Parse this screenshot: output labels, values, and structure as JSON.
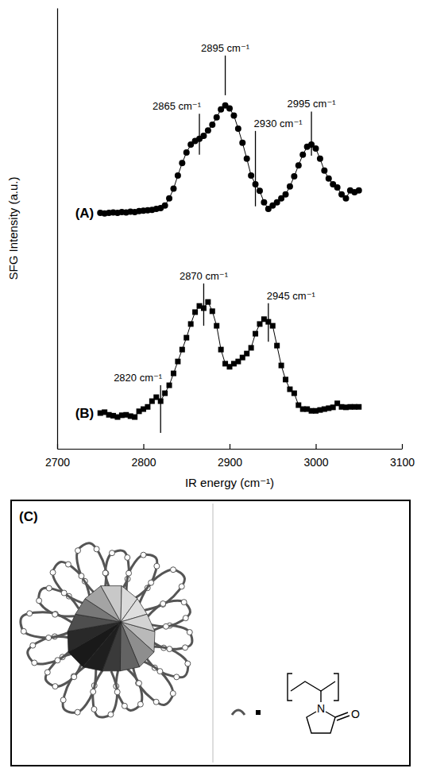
{
  "chart_data": {
    "type": "line",
    "x_label": "IR energy (cm⁻¹)",
    "y_label": "SFG Intensity (a.u.)",
    "xlim": [
      2700,
      3100
    ],
    "xticks": [
      2700,
      2800,
      2900,
      3000,
      3100
    ],
    "ylim": [
      0,
      100
    ],
    "tick_labels": "x",
    "x": [
      2750,
      2755,
      2760,
      2765,
      2770,
      2775,
      2780,
      2785,
      2790,
      2795,
      2800,
      2805,
      2810,
      2815,
      2820,
      2825,
      2830,
      2835,
      2840,
      2845,
      2850,
      2855,
      2860,
      2865,
      2870,
      2875,
      2880,
      2885,
      2890,
      2895,
      2900,
      2905,
      2910,
      2915,
      2920,
      2925,
      2930,
      2935,
      2940,
      2945,
      2950,
      2955,
      2960,
      2965,
      2970,
      2975,
      2980,
      2985,
      2990,
      2995,
      3000,
      3005,
      3010,
      3015,
      3020,
      3025,
      3030,
      3035,
      3040,
      3045,
      3050
    ],
    "series": [
      {
        "name": "(A)",
        "color": "#000000",
        "marker": "circle",
        "line_style": "solid",
        "values": [
          53.5,
          53.4,
          53.5,
          53.6,
          53.5,
          53.7,
          53.6,
          53.8,
          53.7,
          53.9,
          54.0,
          54.1,
          54.2,
          54.4,
          54.6,
          55.2,
          56.8,
          59.0,
          62.0,
          64.8,
          67.2,
          69.0,
          69.8,
          70.3,
          71.0,
          72.2,
          73.5,
          75.2,
          77.0,
          77.9,
          77.2,
          75.6,
          72.6,
          69.4,
          65.8,
          62.0,
          60.0,
          58.5,
          55.9,
          54.4,
          55.2,
          55.9,
          56.8,
          57.7,
          59.5,
          61.8,
          64.3,
          66.7,
          68.5,
          69.0,
          68.1,
          65.8,
          63.1,
          61.3,
          60.0,
          59.3,
          57.7,
          56.8,
          58.6,
          58.2,
          58.6
        ]
      },
      {
        "name": "(B)",
        "color": "#000000",
        "marker": "square",
        "line_style": "solid",
        "values": [
          8.1,
          8.3,
          7.7,
          7.5,
          7.2,
          7.6,
          7.7,
          7.4,
          7.2,
          8.5,
          9.0,
          9.5,
          10.8,
          11.7,
          10.8,
          12.6,
          14.4,
          17.1,
          19.8,
          22.5,
          25.2,
          28.3,
          31.0,
          32.4,
          31.9,
          33.3,
          31.2,
          27.9,
          22.5,
          19.3,
          18.6,
          19.3,
          19.8,
          20.7,
          21.6,
          22.9,
          26.1,
          28.3,
          29.4,
          28.8,
          27.9,
          23.4,
          18.9,
          15.7,
          13.5,
          12.6,
          9.9,
          9.0,
          9.0,
          8.6,
          8.6,
          8.8,
          9.0,
          9.2,
          9.4,
          10.3,
          9.5,
          9.4,
          9.5,
          9.5,
          9.5
        ]
      }
    ],
    "annotations": [
      {
        "label": "2865 cm⁻¹",
        "x": 2865,
        "y_range": [
          66.7,
          76.0
        ],
        "series": "(A)"
      },
      {
        "label": "2895 cm⁻¹",
        "x": 2895,
        "y_range": [
          80.2,
          89.2
        ],
        "series": "(A)"
      },
      {
        "label": "2930 cm⁻¹",
        "x": 2930,
        "y_range": [
          55.0,
          72.1
        ],
        "series": "(A)"
      },
      {
        "label": "2995 cm⁻¹",
        "x": 2995,
        "y_range": [
          66.5,
          76.5
        ],
        "series": "(A)"
      },
      {
        "label": "2820 cm⁻¹",
        "x": 2820,
        "y_range": [
          3.6,
          14.4
        ],
        "series": "(B)"
      },
      {
        "label": "2870 cm⁻¹",
        "x": 2870,
        "y_range": [
          27.9,
          37.5
        ],
        "series": "(B)"
      },
      {
        "label": "2945 cm⁻¹",
        "x": 2945,
        "y_range": [
          24.3,
          33.0
        ],
        "series": "(B)"
      }
    ]
  },
  "diagram": {
    "label": "(C)",
    "monomer": {
      "atoms": [
        "N",
        "O"
      ]
    }
  }
}
